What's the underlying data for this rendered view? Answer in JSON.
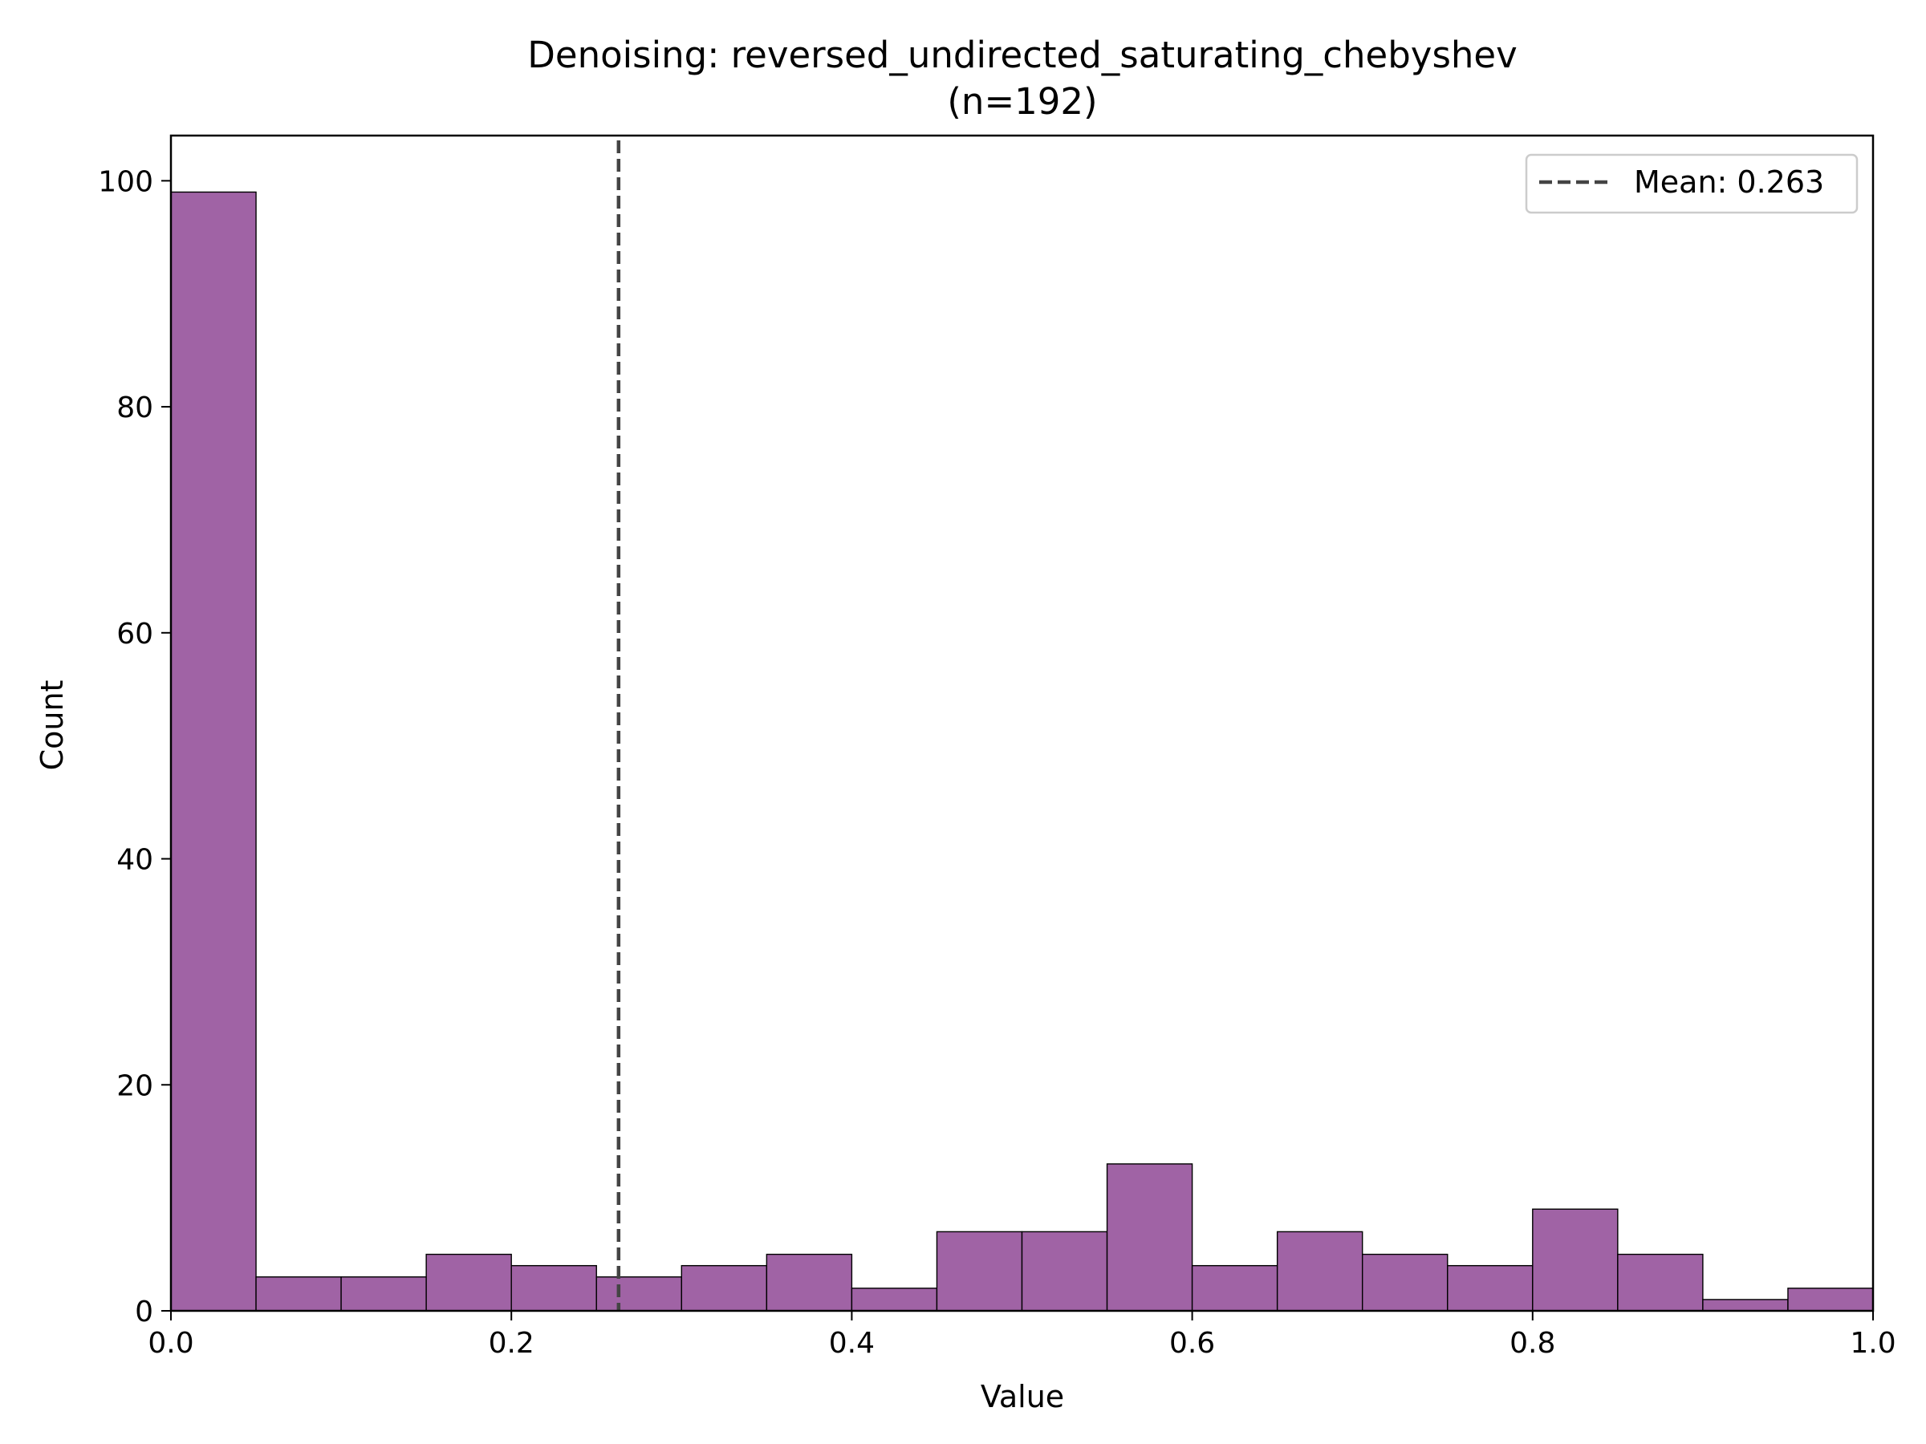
{
  "chart_data": {
    "type": "bar",
    "title": "Denoising: reversed_undirected_saturating_chebyshev",
    "subtitle": "(n=192)",
    "xlabel": "Value",
    "ylabel": "Count",
    "xlim": [
      0.0,
      1.0
    ],
    "ylim": [
      0,
      104
    ],
    "x_ticks": [
      "0.0",
      "0.2",
      "0.4",
      "0.6",
      "0.8",
      "1.0"
    ],
    "y_ticks": [
      "0",
      "20",
      "40",
      "60",
      "80",
      "100"
    ],
    "bin_width": 0.05,
    "bin_starts": [
      0.0,
      0.05,
      0.1,
      0.15,
      0.2,
      0.25,
      0.3,
      0.35,
      0.4,
      0.45,
      0.5,
      0.55,
      0.6,
      0.65,
      0.7,
      0.75,
      0.8,
      0.85,
      0.9,
      0.95
    ],
    "values": [
      99,
      3,
      3,
      5,
      4,
      3,
      4,
      5,
      2,
      7,
      7,
      13,
      4,
      7,
      5,
      4,
      9,
      5,
      1,
      2
    ],
    "bar_color": "#a063a5",
    "edge_color": "#000000",
    "mean_line": {
      "value": 0.263,
      "label": "Mean: 0.263",
      "color": "#444444",
      "style": "dashed"
    },
    "legend_position": "top-right",
    "grid": false
  }
}
